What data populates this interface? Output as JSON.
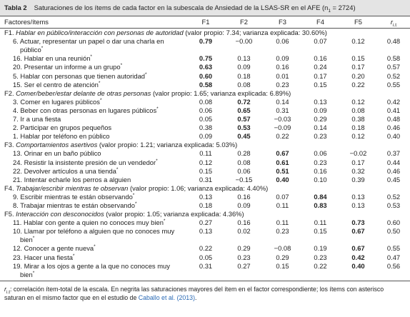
{
  "header": {
    "label": "Tabla 2",
    "caption": "Saturaciones de los ítems de cada factor en la subescala de Ansiedad de la LSAS-SR en el AFE (n",
    "caption_sub": "1",
    "caption_end": " = 2724)"
  },
  "columns": [
    "Factores/ítems",
    "F1",
    "F2",
    "F3",
    "F4",
    "F5"
  ],
  "rit": {
    "symbol": "r",
    "sub": "i.t"
  },
  "sections": [
    {
      "label": "F1.",
      "name": "Hablar en público/interacción con personas de autoridad",
      "stats": "(valor propio: 7.34; varianza explicada: 30.60%)",
      "items": [
        {
          "text": "6. Actuar, representar un papel o dar una charla en público",
          "mark": "*",
          "values": [
            "0.79",
            "−0.00",
            "0.06",
            "0.07",
            "0.12",
            "0.48"
          ]
        },
        {
          "text": "16. Hablar en una reunión",
          "mark": "*",
          "values": [
            "0.75",
            "0.13",
            "0.09",
            "0.16",
            "0.15",
            "0.58"
          ]
        },
        {
          "text": "20. Presentar un informe a un grupo",
          "mark": "*",
          "values": [
            "0.63",
            "0.09",
            "0.16",
            "0.24",
            "0.17",
            "0.57"
          ]
        },
        {
          "text": "5. Hablar con personas que tienen autoridad",
          "mark": "*",
          "values": [
            "0.60",
            "0.18",
            "0.01",
            "0.17",
            "0.20",
            "0.52"
          ]
        },
        {
          "text": "15. Ser el centro de atención",
          "mark": "*",
          "values": [
            "0.58",
            "0.08",
            "0.23",
            "0.15",
            "0.22",
            "0.55"
          ]
        }
      ]
    },
    {
      "label": "F2.",
      "name": "Comer/beber/estar delante de otras personas",
      "stats": "(valor propio: 1.65; varianza explicada: 6.89%)",
      "items": [
        {
          "text": "3. Comer en lugares públicos",
          "mark": "*",
          "values": [
            "0.08",
            "0.72",
            "0.14",
            "0.13",
            "0.12",
            "0.42"
          ]
        },
        {
          "text": "4. Beber con otras personas en lugares públicos",
          "mark": "*",
          "values": [
            "0.06",
            "0.65",
            "0.31",
            "0.09",
            "0.08",
            "0.41"
          ]
        },
        {
          "text": "7. Ir a una fiesta",
          "values": [
            "0.05",
            "0.57",
            "−0.03",
            "0.29",
            "0.38",
            "0.48"
          ]
        },
        {
          "text": "2. Participar en grupos pequeños",
          "values": [
            "0.38",
            "0.53",
            "−0.09",
            "0.14",
            "0.18",
            "0.46"
          ]
        },
        {
          "text": "1. Hablar por teléfono en público",
          "values": [
            "0.09",
            "0.45",
            "0.22",
            "0.23",
            "0.12",
            "0.40"
          ]
        }
      ]
    },
    {
      "label": "F3.",
      "name": "Comportamientos asertivos",
      "stats": "(valor propio: 1.21; varianza explicada: 5.03%)",
      "items": [
        {
          "text": "13. Orinar en un baño público",
          "values": [
            "0.11",
            "0.28",
            "0.67",
            "0.06",
            "−0.02",
            "0.37"
          ]
        },
        {
          "text": "24. Resistir la insistente presión de un vendedor",
          "mark": "*",
          "values": [
            "0.12",
            "0.08",
            "0.61",
            "0.23",
            "0.17",
            "0.44"
          ]
        },
        {
          "text": "22. Devolver artículos a una tienda",
          "mark": "*",
          "values": [
            "0.15",
            "0.06",
            "0.51",
            "0.16",
            "0.32",
            "0.46"
          ]
        },
        {
          "text": "21. Intentar echarle los perros a alguien",
          "values": [
            "0.31",
            "−0.15",
            "0.40",
            "0.10",
            "0.39",
            "0.45"
          ]
        }
      ]
    },
    {
      "label": "F4.",
      "name": "Trabajar/escribir mientras te observan",
      "stats": "(valor propio: 1.06; varianza explicada: 4.40%)",
      "items": [
        {
          "text": "9. Escribir mientras te están observando",
          "mark": "*",
          "values": [
            "0.13",
            "0.16",
            "0.07",
            "0.84",
            "0.13",
            "0.52"
          ]
        },
        {
          "text": "8. Trabajar mientras te están observando",
          "mark": "*",
          "values": [
            "0.18",
            "0.09",
            "0.11",
            "0.83",
            "0.13",
            "0.53"
          ]
        }
      ]
    },
    {
      "label": "F5.",
      "name": "Interacción con desconocidos",
      "stats": "(valor propio: 1.05; varianza explicada: 4.36%)",
      "items": [
        {
          "text": "11. Hablar con gente a quien no conoces muy bien",
          "mark": "*",
          "values": [
            "0.27",
            "0.16",
            "0.11",
            "0.11",
            "0.73",
            "0.60"
          ]
        },
        {
          "text": "10. Llamar por teléfono a alguien que no conoces muy bien",
          "mark": "*",
          "values": [
            "0.13",
            "0.02",
            "0.23",
            "0.15",
            "0.67",
            "0.50"
          ]
        },
        {
          "text": "12. Conocer a gente nueva",
          "mark": "*",
          "values": [
            "0.22",
            "0.29",
            "−0.08",
            "0.19",
            "0.67",
            "0.55"
          ]
        },
        {
          "text": "23. Hacer una fiesta",
          "mark": "*",
          "values": [
            "0.05",
            "0.23",
            "0.29",
            "0.23",
            "0.42",
            "0.47"
          ]
        },
        {
          "text": "19. Mirar a los ojos a gente a la que no conoces muy bien",
          "mark": "*",
          "values": [
            "0.31",
            "0.27",
            "0.15",
            "0.22",
            "0.40",
            "0.56"
          ]
        }
      ]
    }
  ],
  "footnote": {
    "text": ": correlación ítem-total de la escala. En negrita las saturaciones mayores del ítem en el factor correspondiente; los ítems con asterisco saturan en el mismo factor que en el estudio de ",
    "link": "Caballo et al. (2013)",
    "end": "."
  }
}
